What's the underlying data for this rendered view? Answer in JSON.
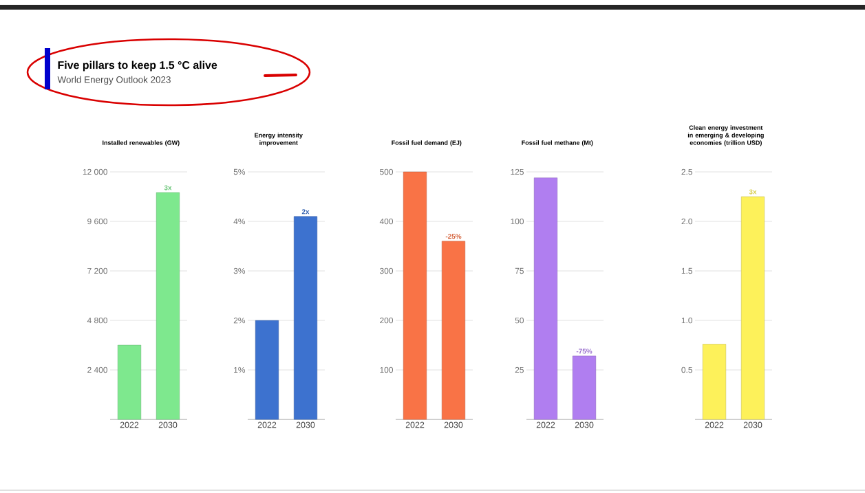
{
  "chart_data": [
    {
      "type": "other",
      "title": "Five pillars to keep 1.5 °C alive",
      "subtitle": "World Energy Outlook 2023"
    },
    {
      "type": "bar",
      "title": "Installed renewables (GW)",
      "categories": [
        "2022",
        "2030"
      ],
      "values": [
        3600,
        11000
      ],
      "color": "#7ee88e",
      "ylim": [
        0,
        12000
      ],
      "yticks": [
        {
          "value": 2400,
          "label": "2 400"
        },
        {
          "value": 4800,
          "label": "4 800"
        },
        {
          "value": 7200,
          "label": "7 200"
        },
        {
          "value": 9600,
          "label": "9 600"
        },
        {
          "value": 12000,
          "label": "12 000"
        }
      ],
      "grid": "y",
      "annotations": [
        {
          "text": "3x",
          "x": "2030",
          "y": 11000
        }
      ]
    },
    {
      "type": "bar",
      "title": "Energy intensity improvement",
      "categories": [
        "2022",
        "2030"
      ],
      "values": [
        2.0,
        4.1
      ],
      "color": "#3d72cf",
      "ylim": [
        0,
        5
      ],
      "yticks": [
        {
          "value": 1,
          "label": "1%"
        },
        {
          "value": 2,
          "label": "2%"
        },
        {
          "value": 3,
          "label": "3%"
        },
        {
          "value": 4,
          "label": "4%"
        },
        {
          "value": 5,
          "label": "5%"
        }
      ],
      "grid": "y",
      "annotations": [
        {
          "text": "2x",
          "x": "2030",
          "y": 4.1
        }
      ]
    },
    {
      "type": "bar",
      "title": "Fossil fuel demand (EJ)",
      "categories": [
        "2022",
        "2030"
      ],
      "values": [
        500,
        360
      ],
      "color": "#f97346",
      "ylim": [
        0,
        500
      ],
      "yticks": [
        100,
        200,
        300,
        400,
        500
      ],
      "grid": "y",
      "annotations": [
        {
          "text": "-25%",
          "x": "2030",
          "y": 360
        }
      ]
    },
    {
      "type": "bar",
      "title": "Fossil fuel methane (Mt)",
      "categories": [
        "2022",
        "2030"
      ],
      "values": [
        122,
        32
      ],
      "color": "#b07ef0",
      "ylim": [
        0,
        125
      ],
      "yticks": [
        25,
        50,
        75,
        100,
        125
      ],
      "grid": "y",
      "annotations": [
        {
          "text": "-75%",
          "x": "2030",
          "y": 32
        }
      ]
    },
    {
      "type": "bar",
      "title": "Clean energy investment in emerging & developing economies (trillion USD)",
      "categories": [
        "2022",
        "2030"
      ],
      "values": [
        0.76,
        2.25
      ],
      "color": "#fdf15a",
      "ylim": [
        0,
        2.5
      ],
      "yticks": [
        {
          "value": 0.5,
          "label": "0.5"
        },
        {
          "value": 1,
          "label": "1.0"
        },
        {
          "value": 1.5,
          "label": "1.5"
        },
        {
          "value": 2,
          "label": "2.0"
        },
        {
          "value": 2.5,
          "label": "2.5"
        }
      ],
      "grid": "y",
      "annotations": [
        {
          "text": "3x",
          "x": "2030",
          "y": 2.25
        }
      ]
    }
  ]
}
